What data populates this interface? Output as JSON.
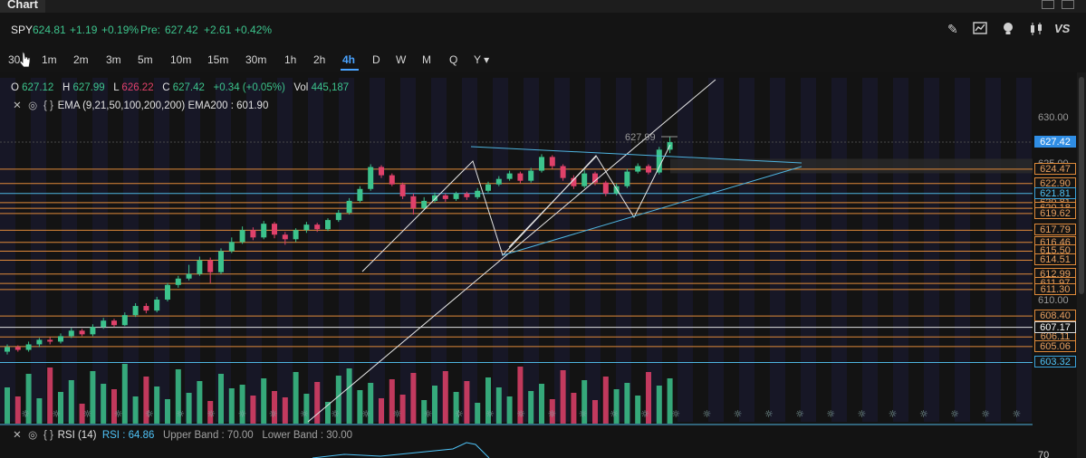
{
  "window": {
    "title": "Chart"
  },
  "quote": {
    "symbol": "SPY",
    "last": "624.81",
    "change": "+1.19",
    "change_pct": "+0.19%",
    "pre_label": "Pre:",
    "pre_last": "627.42",
    "pre_change": "+2.61",
    "pre_change_pct": "+0.42%"
  },
  "toolbar": {
    "icons": [
      "pencil-icon",
      "chart-icon",
      "lightbulb-icon",
      "candles-icon"
    ],
    "vs_label": "VS"
  },
  "timeframes": [
    "30",
    "1m",
    "2m",
    "3m",
    "5m",
    "10m",
    "15m",
    "30m",
    "1h",
    "2h",
    "4h",
    "D",
    "W",
    "M",
    "Q",
    "Y"
  ],
  "active_timeframe": "4h",
  "ohlc": {
    "o_label": "O",
    "o": "627.12",
    "h_label": "H",
    "h": "627.99",
    "l_label": "L",
    "l": "626.22",
    "c_label": "C",
    "c": "627.42",
    "chg": "+0.34 (+0.05%)",
    "vol_label": "Vol",
    "vol": "445,187"
  },
  "ema": {
    "label": "EMA (9,21,50,100,200,200)",
    "value_label": "EMA200 : 601.90"
  },
  "rsi": {
    "label": "RSI (14)",
    "value": "RSI : 64.86",
    "upper": "Upper Band : 70.00",
    "lower": "Lower Band : 30.00"
  },
  "high_marker": "627.99",
  "price_axis": {
    "ticks": [
      "630.00",
      "625.00",
      "610.00"
    ],
    "current": "627.42",
    "levels": [
      "624.47",
      "622.90",
      "620.81",
      "620.18",
      "619.62",
      "617.79",
      "616.46",
      "615.50",
      "614.51",
      "612.99",
      "611.97",
      "611.30",
      "608.40",
      "606.11",
      "605.06"
    ],
    "blue_level": "621.81",
    "white_level": "607.17",
    "lower_blue": "603.32",
    "rsi_tick": "70"
  },
  "colors": {
    "up": "#3cc38c",
    "down": "#e0416a",
    "level_line": "#e08a3a",
    "trend_blue": "#4fb5e0",
    "accent": "#4aa3ff"
  }
}
